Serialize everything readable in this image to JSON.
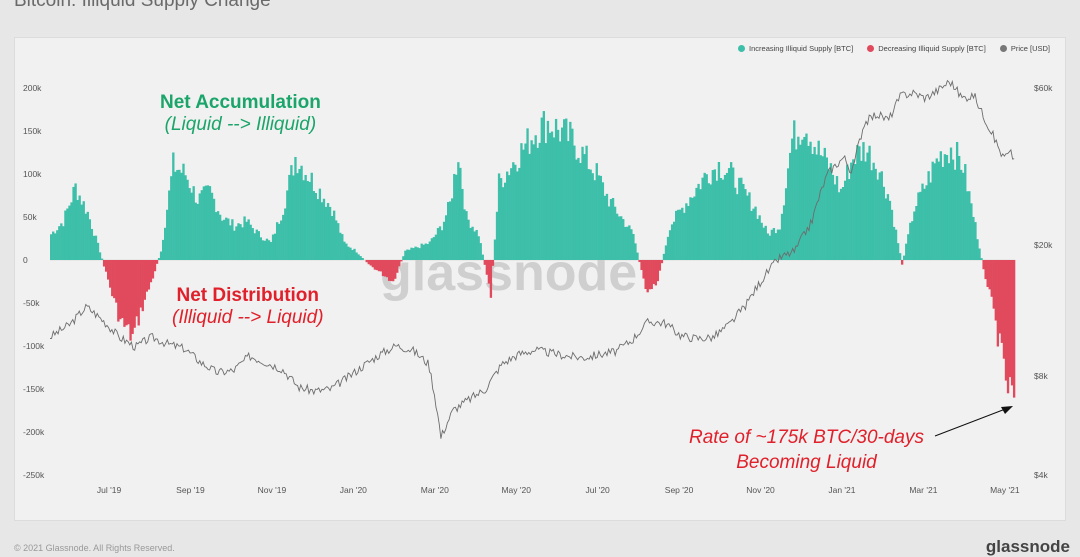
{
  "title": "Bitcoin: Illiquid Supply Change",
  "watermark": "glassnode",
  "footer_left": "© 2021 Glassnode. All Rights Reserved.",
  "footer_right": "glassnode",
  "legend": [
    {
      "label": "Increasing Illiquid Supply [BTC]",
      "color": "#3dbfa9"
    },
    {
      "label": "Decreasing Illiquid Supply [BTC]",
      "color": "#e04a5c"
    },
    {
      "label": "Price [USD]",
      "color": "#777777"
    }
  ],
  "annotations": {
    "accumulation_title": "Net Accumulation",
    "accumulation_sub": "(Liquid --> Illiquid)",
    "distribution_title": "Net Distribution",
    "distribution_sub": "(Illiquid --> Liquid)",
    "rate_line1": "Rate of ~175k BTC/30-days",
    "rate_line2": "Becoming Liquid"
  },
  "chart_data": {
    "type": "bar",
    "left_axis": {
      "ticks": [
        "200k",
        "150k",
        "100k",
        "50k",
        "0",
        "-50k",
        "-100k",
        "-150k",
        "-200k",
        "-250k"
      ],
      "range": [
        -250000,
        200000
      ]
    },
    "right_axis": {
      "ticks": [
        "$60k",
        "$20k",
        "$8k",
        "$4k"
      ],
      "scale": "log",
      "range": [
        4000,
        60000
      ]
    },
    "x_ticks": [
      "Jul '19",
      "Sep '19",
      "Nov '19",
      "Jan '20",
      "Mar '20",
      "May '20",
      "Jul '20",
      "Sep '20",
      "Nov '20",
      "Jan '21",
      "Mar '21",
      "May '21"
    ],
    "x_range_months": [
      5.3,
      29.0
    ],
    "supply_change_series": [
      [
        5.3,
        30000
      ],
      [
        5.6,
        45000
      ],
      [
        5.9,
        85000
      ],
      [
        6.2,
        55000
      ],
      [
        6.5,
        10000
      ],
      [
        6.8,
        -40000
      ],
      [
        7.0,
        -70000
      ],
      [
        7.3,
        -90000
      ],
      [
        7.5,
        -60000
      ],
      [
        7.8,
        -20000
      ],
      [
        8.0,
        10000
      ],
      [
        8.3,
        110000
      ],
      [
        8.6,
        100000
      ],
      [
        8.9,
        70000
      ],
      [
        9.2,
        80000
      ],
      [
        9.5,
        50000
      ],
      [
        9.8,
        40000
      ],
      [
        10.1,
        45000
      ],
      [
        10.4,
        30000
      ],
      [
        10.7,
        20000
      ],
      [
        11.0,
        60000
      ],
      [
        11.3,
        120000
      ],
      [
        11.6,
        100000
      ],
      [
        11.9,
        80000
      ],
      [
        12.2,
        60000
      ],
      [
        12.5,
        20000
      ],
      [
        12.8,
        10000
      ],
      [
        13.1,
        -5000
      ],
      [
        13.4,
        -15000
      ],
      [
        13.7,
        -25000
      ],
      [
        14.0,
        10000
      ],
      [
        14.3,
        15000
      ],
      [
        14.6,
        20000
      ],
      [
        14.9,
        40000
      ],
      [
        15.1,
        65000
      ],
      [
        15.3,
        125000
      ],
      [
        15.5,
        50000
      ],
      [
        15.8,
        30000
      ],
      [
        16.1,
        -40000
      ],
      [
        16.3,
        90000
      ],
      [
        16.6,
        110000
      ],
      [
        16.9,
        130000
      ],
      [
        17.2,
        150000
      ],
      [
        17.5,
        160000
      ],
      [
        17.8,
        150000
      ],
      [
        18.1,
        140000
      ],
      [
        18.4,
        120000
      ],
      [
        18.7,
        100000
      ],
      [
        19.0,
        70000
      ],
      [
        19.3,
        50000
      ],
      [
        19.6,
        30000
      ],
      [
        19.9,
        -35000
      ],
      [
        20.2,
        -25000
      ],
      [
        20.5,
        40000
      ],
      [
        20.8,
        60000
      ],
      [
        21.1,
        80000
      ],
      [
        21.4,
        100000
      ],
      [
        21.7,
        110000
      ],
      [
        22.0,
        100000
      ],
      [
        22.3,
        80000
      ],
      [
        22.6,
        60000
      ],
      [
        22.9,
        30000
      ],
      [
        23.2,
        40000
      ],
      [
        23.5,
        140000
      ],
      [
        23.8,
        160000
      ],
      [
        24.1,
        130000
      ],
      [
        24.4,
        110000
      ],
      [
        24.7,
        80000
      ],
      [
        25.0,
        120000
      ],
      [
        25.3,
        130000
      ],
      [
        25.6,
        110000
      ],
      [
        25.9,
        70000
      ],
      [
        26.2,
        -5000
      ],
      [
        26.5,
        60000
      ],
      [
        26.8,
        90000
      ],
      [
        27.1,
        120000
      ],
      [
        27.4,
        130000
      ],
      [
        27.7,
        110000
      ],
      [
        28.0,
        40000
      ],
      [
        28.2,
        -10000
      ],
      [
        28.4,
        -50000
      ],
      [
        28.6,
        -100000
      ],
      [
        28.8,
        -150000
      ],
      [
        29.0,
        -165000
      ]
    ],
    "price_series": [
      [
        5.3,
        10500
      ],
      [
        5.8,
        11500
      ],
      [
        6.2,
        13000
      ],
      [
        6.6,
        11800
      ],
      [
        7.0,
        10500
      ],
      [
        7.4,
        9800
      ],
      [
        7.8,
        10500
      ],
      [
        8.2,
        10000
      ],
      [
        8.6,
        9700
      ],
      [
        9.0,
        8800
      ],
      [
        9.4,
        8200
      ],
      [
        9.8,
        8300
      ],
      [
        10.2,
        9200
      ],
      [
        10.6,
        8800
      ],
      [
        11.0,
        8400
      ],
      [
        11.4,
        7400
      ],
      [
        11.8,
        7200
      ],
      [
        12.2,
        7300
      ],
      [
        12.6,
        7900
      ],
      [
        13.0,
        8600
      ],
      [
        13.4,
        9300
      ],
      [
        13.8,
        9900
      ],
      [
        14.2,
        9600
      ],
      [
        14.6,
        8700
      ],
      [
        14.9,
        5200
      ],
      [
        15.2,
        6300
      ],
      [
        15.6,
        6800
      ],
      [
        16.0,
        7300
      ],
      [
        16.4,
        8700
      ],
      [
        16.8,
        9300
      ],
      [
        17.2,
        9600
      ],
      [
        17.6,
        9400
      ],
      [
        18.0,
        9200
      ],
      [
        18.4,
        9100
      ],
      [
        18.8,
        9300
      ],
      [
        19.2,
        9500
      ],
      [
        19.6,
        10300
      ],
      [
        20.0,
        11700
      ],
      [
        20.4,
        11600
      ],
      [
        20.8,
        10600
      ],
      [
        21.2,
        10400
      ],
      [
        21.6,
        10500
      ],
      [
        22.0,
        11500
      ],
      [
        22.4,
        13200
      ],
      [
        22.8,
        15800
      ],
      [
        23.2,
        18200
      ],
      [
        23.6,
        19200
      ],
      [
        24.0,
        23400
      ],
      [
        24.4,
        33000
      ],
      [
        24.8,
        37000
      ],
      [
        25.0,
        33000
      ],
      [
        25.3,
        47000
      ],
      [
        25.6,
        50000
      ],
      [
        25.9,
        48000
      ],
      [
        26.2,
        57000
      ],
      [
        26.5,
        58000
      ],
      [
        26.8,
        56000
      ],
      [
        27.1,
        59000
      ],
      [
        27.4,
        63000
      ],
      [
        27.7,
        56000
      ],
      [
        28.0,
        57000
      ],
      [
        28.2,
        50000
      ],
      [
        28.5,
        42000
      ],
      [
        28.7,
        37000
      ],
      [
        28.9,
        38000
      ],
      [
        29.0,
        36000
      ]
    ]
  }
}
